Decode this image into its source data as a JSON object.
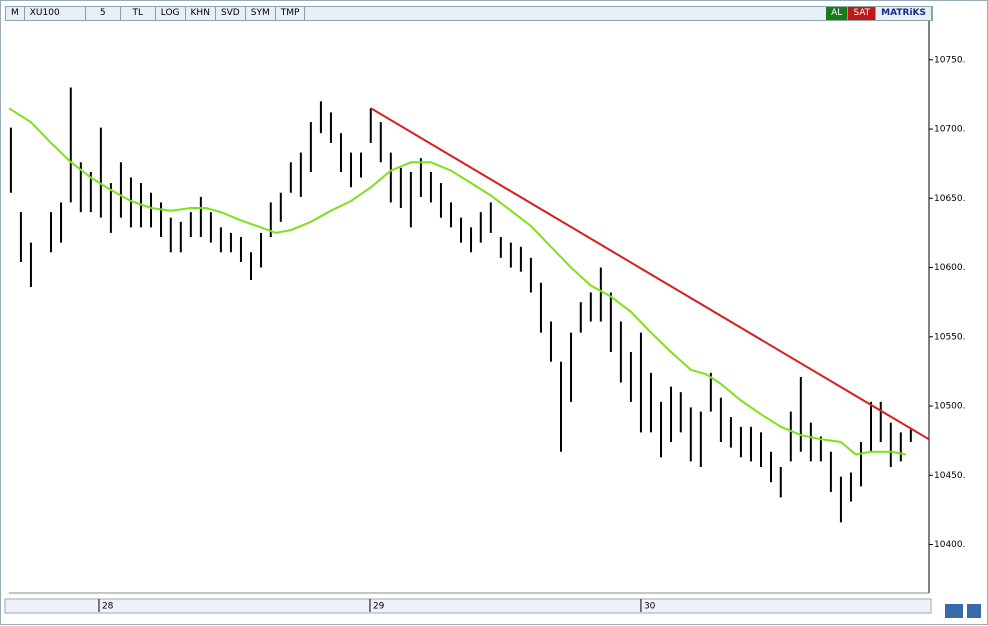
{
  "toolbar": {
    "left": [
      "M",
      "XU100",
      "5",
      "TL",
      "LOG",
      "KHN",
      "SVD",
      "SYM",
      "TMP"
    ],
    "right": [
      "AL",
      "SAT",
      "MATRiKS"
    ]
  },
  "chart_data": {
    "type": "range-bar",
    "color": "#000000",
    "x": [
      27.675,
      27.712,
      27.749,
      27.823,
      27.86,
      27.896,
      27.933,
      27.97,
      28.007,
      28.044,
      28.081,
      28.118,
      28.155,
      28.192,
      28.229,
      28.265,
      28.302,
      28.339,
      28.376,
      28.413,
      28.45,
      28.487,
      28.524,
      28.561,
      28.598,
      28.634,
      28.671,
      28.708,
      28.745,
      28.782,
      28.819,
      28.856,
      28.893,
      28.93,
      28.967,
      29.003,
      29.04,
      29.077,
      29.114,
      29.151,
      29.188,
      29.225,
      29.262,
      29.299,
      29.336,
      29.373,
      29.409,
      29.446,
      29.483,
      29.52,
      29.557,
      29.594,
      29.631,
      29.668,
      29.705,
      29.742,
      29.778,
      29.815,
      29.852,
      29.889,
      29.926,
      29.963,
      30.0,
      30.037,
      30.074,
      30.111,
      30.147,
      30.184,
      30.221,
      30.258,
      30.295,
      30.332,
      30.369,
      30.406,
      30.443,
      30.48,
      30.516,
      30.553,
      30.59,
      30.627,
      30.664,
      30.701,
      30.738,
      30.775,
      30.812,
      30.849,
      30.885,
      30.922,
      30.959,
      30.996
    ],
    "high": [
      10701,
      10640,
      10618,
      10640,
      10647,
      10730,
      10676,
      10669,
      10701,
      10661,
      10676,
      10665,
      10661,
      10654,
      10647,
      10636,
      10633,
      10640,
      10651,
      10640,
      10629,
      10625,
      10622,
      10611,
      10625,
      10647,
      10654,
      10676,
      10683,
      10705,
      10720,
      10712,
      10697,
      10683,
      10683,
      10715,
      10705,
      10683,
      10672,
      10669,
      10679,
      10669,
      10661,
      10647,
      10636,
      10629,
      10640,
      10647,
      10622,
      10618,
      10615,
      10607,
      10589,
      10561,
      10532,
      10553,
      10575,
      10582,
      10600,
      10582,
      10561,
      10539,
      10553,
      10524,
      10503,
      10514,
      10510,
      10499,
      10496,
      10524,
      10506,
      10492,
      10485,
      10485,
      10481,
      10467,
      10456,
      10496,
      10521,
      10488,
      10478,
      10467,
      10449,
      10452,
      10474,
      10503,
      10503,
      10488,
      10481,
      10483
    ],
    "low": [
      10654,
      10604,
      10586,
      10611,
      10618,
      10647,
      10640,
      10640,
      10636,
      10625,
      10636,
      10629,
      10629,
      10629,
      10622,
      10611,
      10611,
      10622,
      10622,
      10618,
      10611,
      10611,
      10604,
      10591,
      10600,
      10622,
      10633,
      10654,
      10651,
      10669,
      10697,
      10690,
      10669,
      10658,
      10665,
      10690,
      10676,
      10647,
      10643,
      10629,
      10651,
      10647,
      10636,
      10629,
      10618,
      10611,
      10618,
      10625,
      10607,
      10600,
      10597,
      10582,
      10553,
      10532,
      10467,
      10503,
      10553,
      10561,
      10561,
      10539,
      10517,
      10503,
      10481,
      10481,
      10463,
      10474,
      10481,
      10460,
      10456,
      10496,
      10474,
      10470,
      10463,
      10460,
      10456,
      10445,
      10434,
      10460,
      10467,
      10460,
      10460,
      10438,
      10416,
      10431,
      10442,
      10467,
      10474,
      10456,
      10460,
      10474
    ],
    "overlays": [
      {
        "type": "line",
        "color": "#7ee01e",
        "x": [
          27.668,
          27.749,
          27.823,
          27.897,
          27.97,
          28.044,
          28.118,
          28.192,
          28.266,
          28.339,
          28.395,
          28.45,
          28.524,
          28.598,
          28.653,
          28.708,
          28.782,
          28.856,
          28.93,
          29.004,
          29.077,
          29.151,
          29.225,
          29.299,
          29.373,
          29.446,
          29.52,
          29.594,
          29.668,
          29.742,
          29.815,
          29.889,
          29.963,
          30.037,
          30.111,
          30.185,
          30.24,
          30.295,
          30.369,
          30.443,
          30.517,
          30.59,
          30.664,
          30.738,
          30.793,
          30.849,
          30.923,
          30.978
        ],
        "values": [
          10715,
          10705,
          10690,
          10676,
          10665,
          10656,
          10648,
          10643,
          10641,
          10643,
          10643,
          10640,
          10634,
          10629,
          10625,
          10627,
          10633,
          10641,
          10648,
          10658,
          10670,
          10676,
          10676,
          10670,
          10661,
          10652,
          10641,
          10630,
          10615,
          10600,
          10587,
          10579,
          10568,
          10553,
          10539,
          10526,
          10523,
          10516,
          10504,
          10494,
          10485,
          10479,
          10476,
          10474,
          10465,
          10467,
          10467,
          10465
        ]
      },
      {
        "type": "line",
        "color": "#d81e1e",
        "x": [
          29.004,
          31.063
        ],
        "values": [
          10715,
          10476
        ]
      }
    ],
    "xlim": [
      27.668,
      31.063
    ],
    "xticks": [
      28,
      29,
      30
    ],
    "ylim": [
      10365,
      10778
    ],
    "yticks": [
      {
        "value": 10400,
        "label": "10400."
      },
      {
        "value": 10450,
        "label": "10450."
      },
      {
        "value": 10500,
        "label": "10500."
      },
      {
        "value": 10550,
        "label": "10550."
      },
      {
        "value": 10600,
        "label": "10600."
      },
      {
        "value": 10650,
        "label": "10650."
      },
      {
        "value": 10700,
        "label": "10700."
      },
      {
        "value": 10750,
        "label": "10750."
      }
    ]
  }
}
